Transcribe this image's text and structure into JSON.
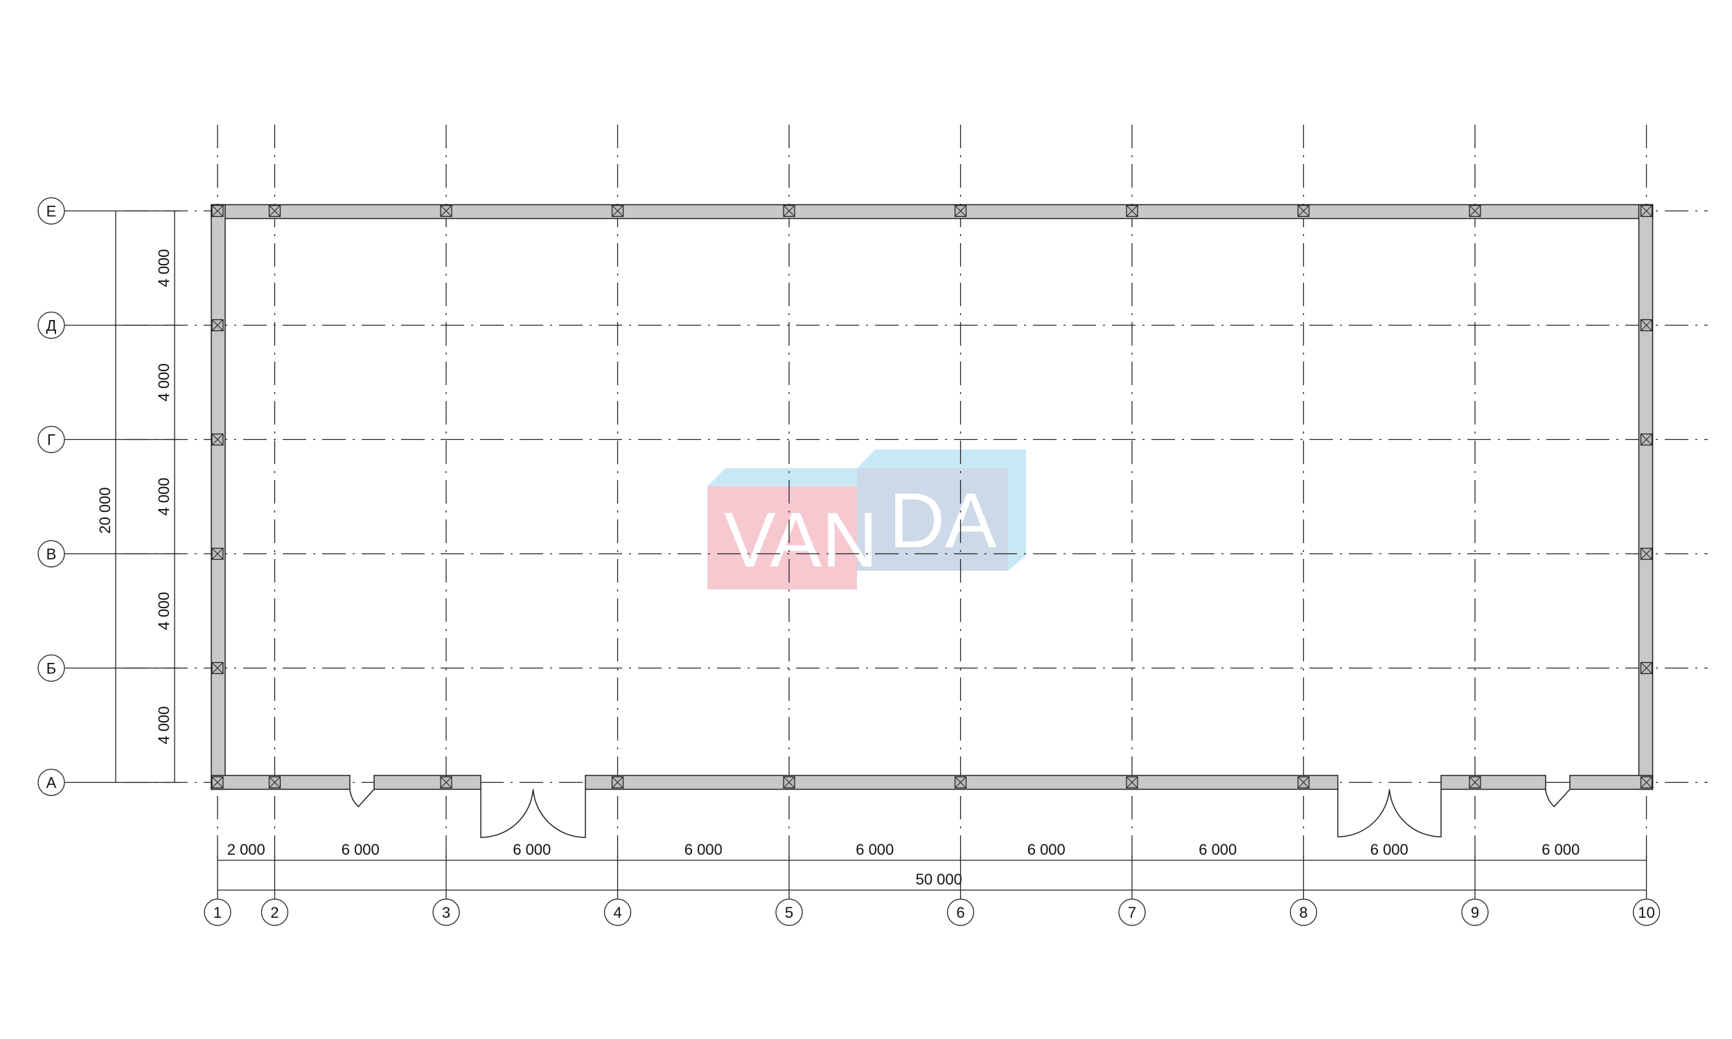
{
  "plan": {
    "column_axes": [
      "1",
      "2",
      "3",
      "4",
      "5",
      "6",
      "7",
      "8",
      "9",
      "10"
    ],
    "column_spacings_mm": [
      2000,
      6000,
      6000,
      6000,
      6000,
      6000,
      6000,
      6000,
      6000
    ],
    "column_spacing_labels": [
      "2 000",
      "6 000",
      "6 000",
      "6 000",
      "6 000",
      "6 000",
      "6 000",
      "6 000",
      "6 000"
    ],
    "overall_length_label": "50 000",
    "row_axes": [
      "Е",
      "Д",
      "Г",
      "В",
      "Б",
      "А"
    ],
    "row_spacings_mm": [
      4000,
      4000,
      4000,
      4000,
      4000
    ],
    "row_spacing_labels": [
      "4 000",
      "4 000",
      "4 000",
      "4 000",
      "4 000"
    ],
    "overall_width_label": "20 000",
    "doors": [
      {
        "type": "single",
        "between_axes": [
          "2",
          "3"
        ]
      },
      {
        "type": "double",
        "between_axes": [
          "3",
          "4"
        ]
      },
      {
        "type": "double",
        "between_axes": [
          "8",
          "9"
        ]
      },
      {
        "type": "single",
        "between_axes": [
          "9",
          "10"
        ]
      }
    ]
  },
  "watermark": {
    "text_left": "VAN",
    "text_right": "DA",
    "colors": {
      "pink": "#f6c9d0",
      "blue": "#cbd9e8",
      "light_blue": "#c9e8f6"
    }
  },
  "colors": {
    "wall": "#c8c8c8",
    "line": "#222222"
  }
}
